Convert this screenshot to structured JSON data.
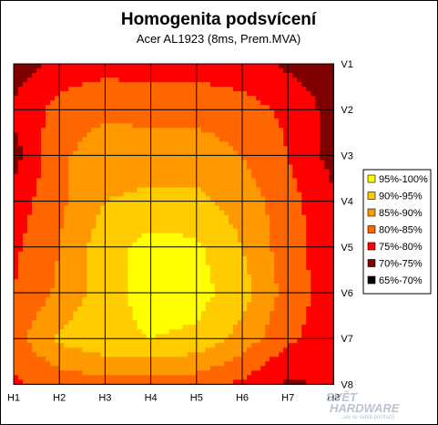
{
  "chart_data": {
    "type": "heatmap",
    "title": "Homogenita podsvícení",
    "subtitle": "Acer AL1923 (8ms, Prem.MVA)",
    "x_categories": [
      "H1",
      "H2",
      "H3",
      "H4",
      "H5",
      "H6",
      "H7",
      "H8"
    ],
    "y_categories": [
      "V1",
      "V2",
      "V3",
      "V4",
      "V5",
      "V6",
      "V7",
      "V8"
    ],
    "legend_position": "right",
    "grid": true,
    "bands": [
      {
        "label": "95%-100%",
        "min": 95,
        "color": "#ffff00"
      },
      {
        "label": "90%-95%",
        "min": 90,
        "color": "#ffcc00"
      },
      {
        "label": "85%-90%",
        "min": 85,
        "color": "#ff9900"
      },
      {
        "label": "80%-85%",
        "min": 80,
        "color": "#ff6600"
      },
      {
        "label": "75%-80%",
        "min": 75,
        "color": "#ff0000"
      },
      {
        "label": "70%-75%",
        "min": 70,
        "color": "#800000"
      },
      {
        "label": "65%-70%",
        "min": 65,
        "color": "#000000"
      }
    ],
    "values": [
      [
        72,
        77,
        78,
        78,
        78,
        77,
        74,
        72
      ],
      [
        76,
        82,
        84,
        83,
        83,
        82,
        79,
        73
      ],
      [
        73,
        84,
        88,
        88,
        88,
        85,
        80,
        73
      ],
      [
        77,
        84,
        90,
        91,
        91,
        88,
        82,
        76
      ],
      [
        79,
        85,
        93,
        97,
        96,
        90,
        82,
        77
      ],
      [
        80,
        86,
        93,
        97,
        97,
        92,
        83,
        77
      ],
      [
        83,
        91,
        94,
        95,
        94,
        88,
        81,
        77
      ],
      [
        79,
        82,
        83,
        83,
        82,
        79,
        74,
        76
      ]
    ]
  },
  "watermark": {
    "line1": "SVĚT",
    "line2": "HARDWARE",
    "line3": "...ale ve světě počítačů"
  }
}
